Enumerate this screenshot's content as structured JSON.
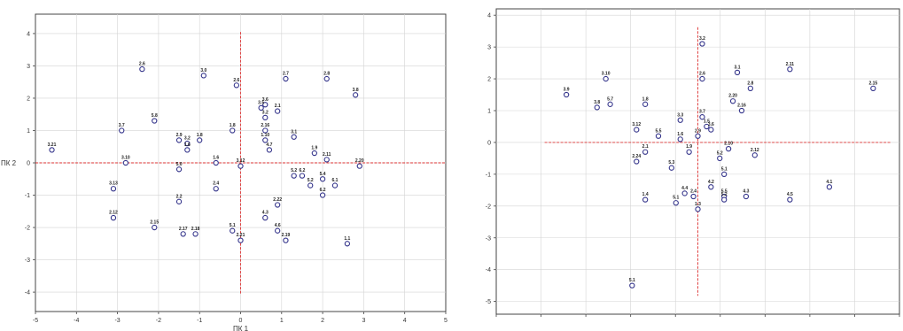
{
  "chart_data": [
    {
      "type": "scatter",
      "title": "",
      "xlabel": "ПК 1",
      "ylabel": "ПК 2",
      "xlim": [
        -5,
        5
      ],
      "ylim": [
        -4.6,
        4.6
      ],
      "xticks": [
        "-5",
        "-4",
        "-3",
        "-2",
        "-1",
        "0",
        "1",
        "2",
        "3",
        "4",
        "5"
      ],
      "yticks": [
        "4",
        "3",
        "2",
        "1",
        "0",
        "-1",
        "-2",
        "-3",
        "-4"
      ],
      "grid": true,
      "reference_lines": {
        "x": 0,
        "y": 0,
        "color": "#dd3333"
      },
      "marker_color": "#33338a",
      "points": [
        {
          "label": "3.21",
          "x": -4.6,
          "y": 0.4
        },
        {
          "label": "2.6",
          "x": -2.4,
          "y": 2.9
        },
        {
          "label": "3.0",
          "x": -0.9,
          "y": 2.7
        },
        {
          "label": "2.7",
          "x": 1.1,
          "y": 2.6
        },
        {
          "label": "2.8",
          "x": 2.1,
          "y": 2.6
        },
        {
          "label": "2.6",
          "x": -0.1,
          "y": 2.4
        },
        {
          "label": "3.8",
          "x": 2.8,
          "y": 2.1
        },
        {
          "label": "3.6",
          "x": 0.6,
          "y": 1.8
        },
        {
          "label": "3.5",
          "x": 0.5,
          "y": 1.7
        },
        {
          "label": "2.1",
          "x": 0.9,
          "y": 1.6
        },
        {
          "label": "3.2",
          "x": 0.6,
          "y": 1.4
        },
        {
          "label": "5.8",
          "x": -2.1,
          "y": 1.3
        },
        {
          "label": "3.7",
          "x": -2.9,
          "y": 1.0
        },
        {
          "label": "1.8",
          "x": -0.2,
          "y": 1.0
        },
        {
          "label": "2.16",
          "x": 0.6,
          "y": 1.0
        },
        {
          "label": "3.1",
          "x": 1.3,
          "y": 0.8
        },
        {
          "label": "2.9",
          "x": -1.5,
          "y": 0.7
        },
        {
          "label": "3.2",
          "x": -1.3,
          "y": 0.6
        },
        {
          "label": "1.8",
          "x": -1.0,
          "y": 0.7
        },
        {
          "label": "1.10",
          "x": 0.6,
          "y": 0.7
        },
        {
          "label": "1.6",
          "x": -1.3,
          "y": 0.4
        },
        {
          "label": "4.7",
          "x": 0.7,
          "y": 0.4
        },
        {
          "label": "1.9",
          "x": 1.8,
          "y": 0.3
        },
        {
          "label": "3.10",
          "x": -2.8,
          "y": 0.0
        },
        {
          "label": "1.6",
          "x": -0.6,
          "y": 0.0
        },
        {
          "label": "3.12",
          "x": 0.0,
          "y": -0.1
        },
        {
          "label": "2.11",
          "x": 2.1,
          "y": 0.1
        },
        {
          "label": "2.20",
          "x": 2.9,
          "y": -0.1
        },
        {
          "label": "5.0",
          "x": -1.5,
          "y": -0.2
        },
        {
          "label": "5.2",
          "x": 1.3,
          "y": -0.4
        },
        {
          "label": "6.2",
          "x": 1.5,
          "y": -0.4
        },
        {
          "label": "5.4",
          "x": 2.0,
          "y": -0.5
        },
        {
          "label": "5.2",
          "x": 1.7,
          "y": -0.7
        },
        {
          "label": "6.1",
          "x": 2.3,
          "y": -0.7
        },
        {
          "label": "3.13",
          "x": -3.1,
          "y": -0.8
        },
        {
          "label": "2.4",
          "x": -0.6,
          "y": -0.8
        },
        {
          "label": "6.2",
          "x": 2.0,
          "y": -1.0
        },
        {
          "label": "2.2",
          "x": -1.5,
          "y": -1.2
        },
        {
          "label": "2.22",
          "x": 0.9,
          "y": -1.3
        },
        {
          "label": "2.12",
          "x": -3.1,
          "y": -1.7
        },
        {
          "label": "4.3",
          "x": 0.6,
          "y": -1.7
        },
        {
          "label": "2.15",
          "x": -2.1,
          "y": -2.0
        },
        {
          "label": "4.6",
          "x": 0.9,
          "y": -2.1
        },
        {
          "label": "5.1",
          "x": -0.2,
          "y": -2.1
        },
        {
          "label": "2.17",
          "x": -1.4,
          "y": -2.2
        },
        {
          "label": "2.18",
          "x": -1.1,
          "y": -2.2
        },
        {
          "label": "2.21",
          "x": 0.0,
          "y": -2.4
        },
        {
          "label": "2.19",
          "x": 1.1,
          "y": -2.4
        },
        {
          "label": "1.1",
          "x": 2.6,
          "y": -2.5
        }
      ]
    },
    {
      "type": "scatter",
      "title": "",
      "xlabel": "",
      "ylabel": "",
      "xlim": [
        -4.6,
        4.6
      ],
      "ylim": [
        -5.4,
        4.2
      ],
      "xticks": [
        "",
        "",
        "",
        "",
        "",
        "",
        "",
        "",
        "",
        ""
      ],
      "yticks": [
        "4",
        "3",
        "2",
        "1",
        "0",
        "-1",
        "-2",
        "-3",
        "-4",
        "-5"
      ],
      "grid": true,
      "reference_lines": {
        "x": 0,
        "y": 0,
        "color": "#dd3333"
      },
      "marker_color": "#33338a",
      "points": [
        {
          "label": "3.2",
          "x": 0.1,
          "y": 3.1
        },
        {
          "label": "3.1",
          "x": 0.9,
          "y": 2.2
        },
        {
          "label": "2.11",
          "x": 2.1,
          "y": 2.3
        },
        {
          "label": "2.15",
          "x": 4.0,
          "y": 1.7
        },
        {
          "label": "3.10",
          "x": -2.1,
          "y": 2.0
        },
        {
          "label": "2.6",
          "x": 0.1,
          "y": 2.0
        },
        {
          "label": "2.8",
          "x": 1.2,
          "y": 1.7
        },
        {
          "label": "3.9",
          "x": -3.0,
          "y": 1.5
        },
        {
          "label": "3.8",
          "x": -2.3,
          "y": 1.1
        },
        {
          "label": "5.7",
          "x": -2.0,
          "y": 1.2
        },
        {
          "label": "1.8",
          "x": -1.2,
          "y": 1.2
        },
        {
          "label": "2.20",
          "x": 0.8,
          "y": 1.3
        },
        {
          "label": "2.16",
          "x": 1.0,
          "y": 1.0
        },
        {
          "label": "3.7",
          "x": 0.1,
          "y": 0.8
        },
        {
          "label": "3.3",
          "x": -0.4,
          "y": 0.7
        },
        {
          "label": "1.5",
          "x": 0.2,
          "y": 0.5
        },
        {
          "label": "3.6",
          "x": 0.3,
          "y": 0.4
        },
        {
          "label": "3.12",
          "x": -1.4,
          "y": 0.4
        },
        {
          "label": "5.5",
          "x": -0.9,
          "y": 0.2
        },
        {
          "label": "1.6",
          "x": -0.4,
          "y": 0.1
        },
        {
          "label": "2.9",
          "x": 0.0,
          "y": 0.2
        },
        {
          "label": "2.10",
          "x": 0.7,
          "y": -0.2
        },
        {
          "label": "2.1",
          "x": -1.2,
          "y": -0.3
        },
        {
          "label": "2.24",
          "x": -1.4,
          "y": -0.6
        },
        {
          "label": "2.12",
          "x": 1.3,
          "y": -0.4
        },
        {
          "label": "5.2",
          "x": 0.5,
          "y": -0.5
        },
        {
          "label": "5.3",
          "x": -0.6,
          "y": -0.8
        },
        {
          "label": "1.9",
          "x": -0.2,
          "y": -0.3
        },
        {
          "label": "5.1",
          "x": 0.6,
          "y": -1.0
        },
        {
          "label": "4.1",
          "x": 3.0,
          "y": -1.4
        },
        {
          "label": "4.2",
          "x": 0.3,
          "y": -1.4
        },
        {
          "label": "4.4",
          "x": -0.3,
          "y": -1.6
        },
        {
          "label": "2.4",
          "x": -0.1,
          "y": -1.7
        },
        {
          "label": "1.4",
          "x": -1.2,
          "y": -1.8
        },
        {
          "label": "5.5",
          "x": 0.6,
          "y": -1.7
        },
        {
          "label": "4.3",
          "x": 1.1,
          "y": -1.7
        },
        {
          "label": "4.5",
          "x": 2.1,
          "y": -1.8
        },
        {
          "label": "5.1",
          "x": -0.5,
          "y": -1.9
        },
        {
          "label": "1.3",
          "x": 0.0,
          "y": -2.1
        },
        {
          "label": "5.2",
          "x": 0.6,
          "y": -1.8
        },
        {
          "label": "5.1",
          "x": -1.5,
          "y": -4.5
        }
      ]
    }
  ]
}
